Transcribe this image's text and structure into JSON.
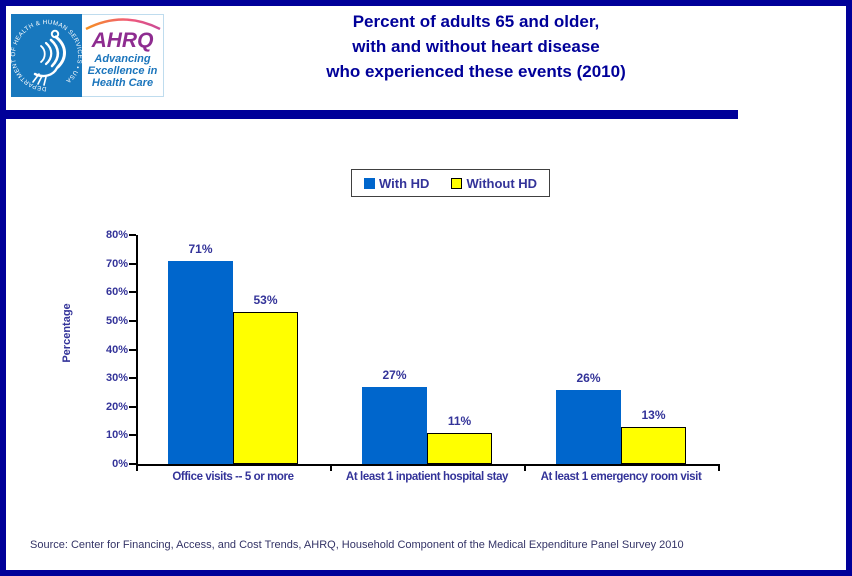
{
  "header": {
    "title_lines": [
      "Percent of adults 65 and older,",
      "with and without heart disease",
      "who experienced these events (2010)"
    ],
    "logo": {
      "ahrq_acronym": "AHRQ",
      "tagline_lines": [
        "Advancing",
        "Excellence in",
        "Health Care"
      ],
      "hhs_ring_text": "DEPARTMENT OF HEALTH & HUMAN SERVICES • USA"
    }
  },
  "chart_data": {
    "type": "bar",
    "title": "Percent of adults 65 and older, with and without heart disease who experienced these events (2010)",
    "categories": [
      "Office visits -- 5 or more",
      "At least 1 inpatient hospital stay",
      "At least 1 emergency room visit"
    ],
    "series": [
      {
        "name": "With HD",
        "color": "#0066CC",
        "values": [
          71,
          27,
          26
        ],
        "labels": [
          "71%",
          "27%",
          "26%"
        ]
      },
      {
        "name": "Without HD",
        "color": "#FFFF00",
        "values": [
          53,
          11,
          13
        ],
        "labels": [
          "53%",
          "11%",
          "13%"
        ]
      }
    ],
    "xlabel": "",
    "ylabel": "Percentage",
    "ylim": [
      0,
      80
    ],
    "ytick_step": 10,
    "ytick_suffix": "%",
    "grid": false,
    "legend_position": "top-center"
  },
  "footer": {
    "source": "Source: Center for Financing, Access, and Cost Trends, AHRQ, Household Component of the Medical Expenditure Panel Survey 2010"
  },
  "colors": {
    "accent_navy": "#000099",
    "text_indigo": "#333399",
    "bar_blue": "#0066CC",
    "bar_yellow": "#FFFF00",
    "axis_black": "#000000",
    "source_text": "#333366",
    "hhs_blue": "#1878BE",
    "ahrq_purple": "#8E2C90",
    "ahrq_blue": "#1B75BC"
  }
}
